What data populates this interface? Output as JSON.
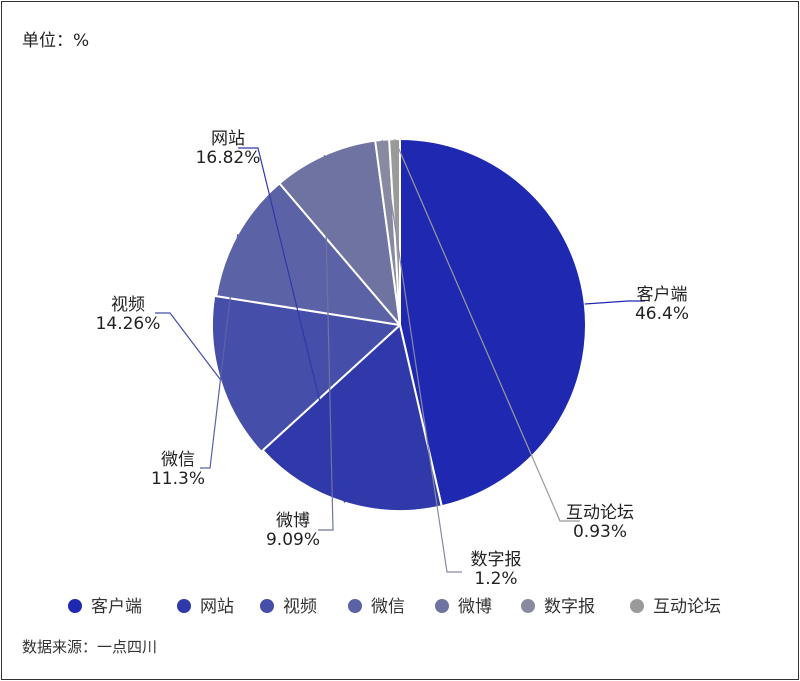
{
  "unit_label": "单位：%",
  "source_label": "数据来源：一点四川",
  "chart_data": {
    "type": "pie",
    "categories": [
      "客户端",
      "网站",
      "视频",
      "微信",
      "微博",
      "数字报",
      "互动论坛"
    ],
    "values": [
      46.4,
      16.82,
      14.26,
      11.3,
      9.09,
      1.2,
      0.93
    ],
    "value_labels": [
      "46.4%",
      "16.82%",
      "14.26%",
      "11.3%",
      "9.09%",
      "1.2%",
      "0.93%"
    ],
    "colors": [
      "#1f28b0",
      "#2f39aa",
      "#454ea9",
      "#5b62a6",
      "#6f73a2",
      "#888aa2",
      "#9a9a9a"
    ],
    "legend_position": "bottom",
    "start_angle_deg": 0,
    "direction": "clockwise"
  }
}
